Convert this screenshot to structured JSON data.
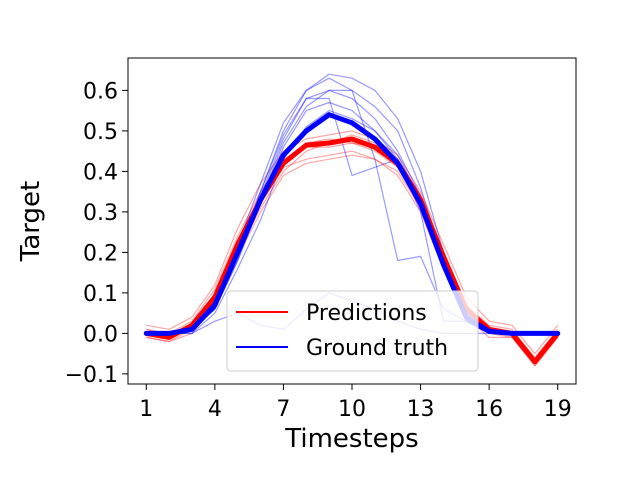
{
  "chart_data": {
    "type": "line",
    "title": "",
    "xlabel": "Timesteps",
    "ylabel": "Target",
    "xlim": [
      0.2,
      19.8
    ],
    "ylim": [
      -0.125,
      0.68
    ],
    "x_ticks": [
      1,
      4,
      7,
      10,
      13,
      16,
      19
    ],
    "x_tick_labels": [
      "1",
      "4",
      "7",
      "10",
      "13",
      "16",
      "19"
    ],
    "y_ticks": [
      -0.1,
      0.0,
      0.1,
      0.2,
      0.3,
      0.4,
      0.5,
      0.6
    ],
    "y_tick_labels": [
      "−0.1",
      "0.0",
      "0.1",
      "0.2",
      "0.3",
      "0.4",
      "0.5",
      "0.6"
    ],
    "grid": false,
    "legend": {
      "position": "lower-center",
      "entries": [
        {
          "label": "Predictions",
          "color": "#ff0000"
        },
        {
          "label": "Ground truth",
          "color": "#0000ff"
        }
      ]
    },
    "x": [
      1,
      2,
      3,
      4,
      5,
      6,
      7,
      8,
      9,
      10,
      11,
      12,
      13,
      14,
      15,
      16,
      17,
      18,
      19
    ],
    "series": [
      {
        "name": "Predictions",
        "color": "#ff0000",
        "values": [
          0.0,
          -0.01,
          0.02,
          0.09,
          0.22,
          0.33,
          0.42,
          0.465,
          0.47,
          0.48,
          0.46,
          0.42,
          0.33,
          0.19,
          0.06,
          0.01,
          0.0,
          -0.07,
          0.0
        ]
      },
      {
        "name": "Ground truth",
        "color": "#0000ff",
        "values": [
          0.0,
          0.0,
          0.01,
          0.07,
          0.2,
          0.33,
          0.44,
          0.5,
          0.54,
          0.52,
          0.48,
          0.42,
          0.32,
          0.17,
          0.04,
          0.005,
          0.0,
          0.0,
          0.0
        ]
      }
    ],
    "sample_series": {
      "predictions": [
        [
          0.01,
          0.0,
          0.03,
          0.11,
          0.24,
          0.35,
          0.43,
          0.46,
          0.46,
          0.47,
          0.45,
          0.41,
          0.33,
          0.2,
          0.07,
          0.02,
          0.01,
          -0.06,
          0.01
        ],
        [
          -0.01,
          -0.02,
          0.01,
          0.08,
          0.2,
          0.31,
          0.4,
          0.45,
          0.47,
          0.49,
          0.47,
          0.43,
          0.34,
          0.18,
          0.05,
          0.0,
          -0.01,
          -0.08,
          -0.01
        ],
        [
          0.02,
          0.01,
          0.04,
          0.12,
          0.26,
          0.37,
          0.45,
          0.48,
          0.49,
          0.5,
          0.48,
          0.44,
          0.35,
          0.22,
          0.09,
          0.03,
          0.02,
          -0.05,
          0.02
        ],
        [
          0.0,
          -0.01,
          0.02,
          0.09,
          0.21,
          0.32,
          0.41,
          0.43,
          0.44,
          0.45,
          0.43,
          0.4,
          0.31,
          0.17,
          0.04,
          0.0,
          0.0,
          -0.07,
          0.0
        ],
        [
          0.01,
          -0.01,
          0.02,
          0.1,
          0.23,
          0.34,
          0.42,
          0.47,
          0.48,
          0.47,
          0.46,
          0.41,
          0.32,
          0.2,
          0.06,
          0.01,
          0.0,
          -0.07,
          0.0
        ],
        [
          -0.01,
          -0.02,
          0.0,
          0.07,
          0.19,
          0.3,
          0.39,
          0.42,
          0.43,
          0.44,
          0.43,
          0.39,
          0.3,
          0.16,
          0.04,
          -0.01,
          -0.01,
          -0.08,
          -0.01
        ]
      ],
      "ground_truth": [
        [
          0.0,
          0.0,
          0.01,
          0.07,
          0.2,
          0.35,
          0.5,
          0.6,
          0.64,
          0.63,
          0.6,
          0.53,
          0.4,
          0.2,
          0.05,
          0.01,
          0.0,
          0.0,
          0.0
        ],
        [
          0.0,
          0.0,
          0.02,
          0.08,
          0.22,
          0.37,
          0.52,
          0.6,
          0.63,
          0.6,
          0.56,
          0.5,
          0.36,
          0.18,
          0.04,
          0.01,
          0.0,
          0.0,
          0.0
        ],
        [
          0.0,
          0.0,
          0.01,
          0.06,
          0.18,
          0.33,
          0.47,
          0.56,
          0.6,
          0.58,
          0.53,
          0.45,
          0.34,
          0.17,
          0.03,
          0.0,
          0.0,
          0.0,
          0.0
        ],
        [
          0.0,
          0.0,
          0.01,
          0.07,
          0.2,
          0.34,
          0.48,
          0.58,
          0.58,
          0.39,
          0.41,
          0.43,
          0.34,
          0.18,
          0.04,
          0.0,
          0.0,
          0.0,
          0.0
        ],
        [
          0.0,
          0.0,
          0.01,
          0.06,
          0.2,
          0.35,
          0.49,
          0.58,
          0.6,
          0.6,
          0.43,
          0.18,
          0.19,
          0.06,
          0.03,
          0.0,
          0.0,
          0.0,
          0.0
        ],
        [
          0.0,
          0.0,
          0.01,
          0.06,
          0.18,
          0.32,
          0.46,
          0.55,
          0.57,
          0.55,
          0.5,
          0.44,
          0.33,
          0.16,
          0.03,
          0.0,
          0.0,
          0.0,
          0.0
        ],
        [
          0.0,
          0.0,
          0.0,
          0.05,
          0.16,
          0.28,
          0.43,
          0.51,
          0.55,
          0.53,
          0.5,
          0.43,
          0.3,
          0.03,
          0.03,
          0.0,
          0.0,
          0.0,
          0.0
        ],
        [
          0.0,
          0.0,
          0.0,
          0.03,
          0.05,
          0.02,
          0.01,
          0.06,
          0.1,
          0.08,
          0.06,
          0.03,
          0.01,
          0.0,
          0.0,
          0.0,
          0.0,
          0.0,
          0.0
        ]
      ]
    }
  }
}
